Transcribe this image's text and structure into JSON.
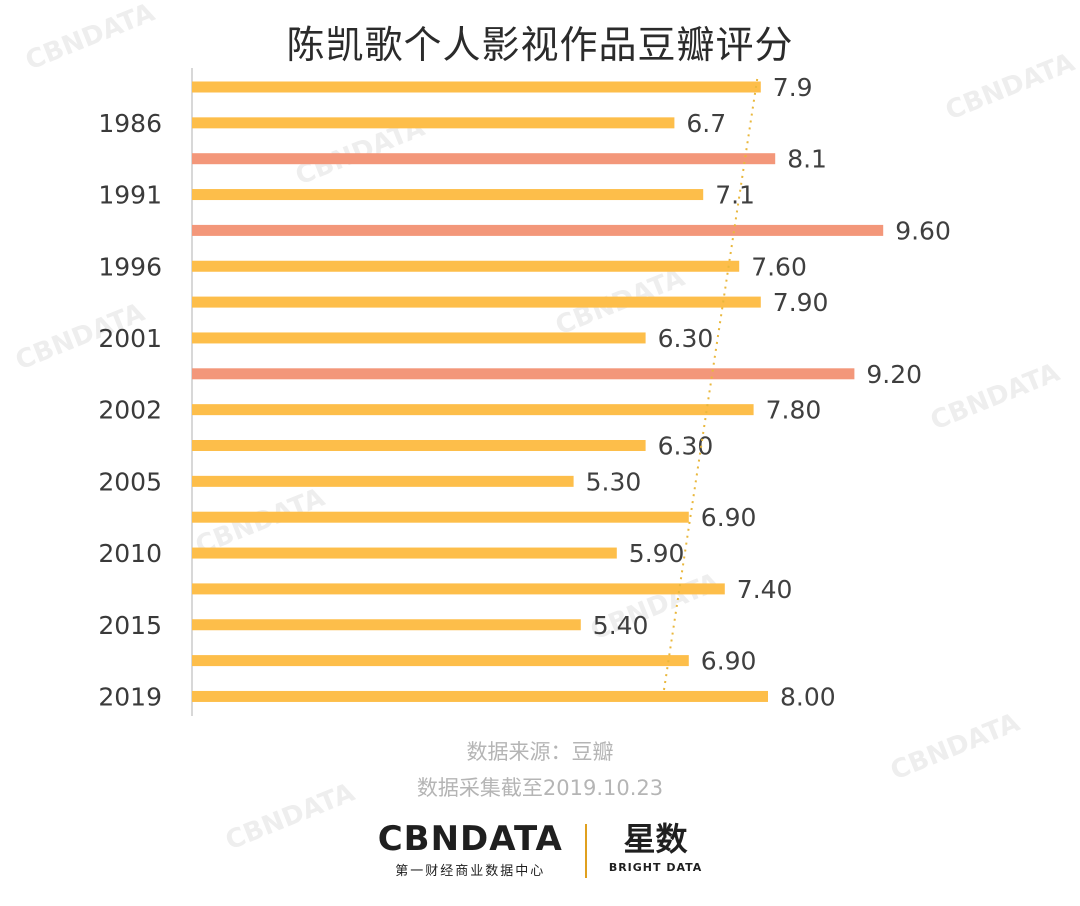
{
  "title": "陈凯歌个人影视作品豆瓣评分",
  "source_note": "数据来源：豆瓣",
  "date_note": "数据采集截至2019.10.23",
  "logo": {
    "brand": "CBNDATA",
    "brand_sub": "第一财经商业数据中心",
    "partner": "星数",
    "partner_sub": "BRIGHT DATA"
  },
  "watermark_text": "CBNDATA",
  "colors": {
    "bar_default": "#FDBE4A",
    "bar_highlight": "#F3977A",
    "trendline": "#E9B73C",
    "axis": "#cccccc"
  },
  "chart_data": {
    "type": "bar",
    "orientation": "horizontal",
    "title": "陈凯歌个人影视作品豆瓣评分",
    "categories": [
      "",
      "1986",
      "",
      "1991",
      "",
      "1996",
      "",
      "2001",
      "",
      "2002",
      "",
      "2005",
      "",
      "2010",
      "",
      "2015",
      "",
      "2019"
    ],
    "values": [
      7.9,
      6.7,
      8.1,
      7.1,
      9.6,
      7.6,
      7.9,
      6.3,
      9.2,
      7.8,
      6.3,
      5.3,
      6.9,
      5.9,
      7.4,
      5.4,
      6.9,
      8.0
    ],
    "value_labels": [
      "7.9",
      "6.7",
      "8.1",
      "7.1",
      "9.60",
      "7.60",
      "7.90",
      "6.30",
      "9.20",
      "7.80",
      "6.30",
      "5.30",
      "6.90",
      "5.90",
      "7.40",
      "5.40",
      "6.90",
      "8.00"
    ],
    "highlight": [
      false,
      false,
      true,
      false,
      true,
      false,
      false,
      false,
      true,
      false,
      false,
      false,
      false,
      false,
      false,
      false,
      false,
      false
    ],
    "xlim": [
      0,
      10
    ],
    "trendline": {
      "style": "dotted",
      "from_value": 7.85,
      "to_value": 6.55
    },
    "grid": false,
    "legend": "none",
    "xlabel": "",
    "ylabel": ""
  }
}
